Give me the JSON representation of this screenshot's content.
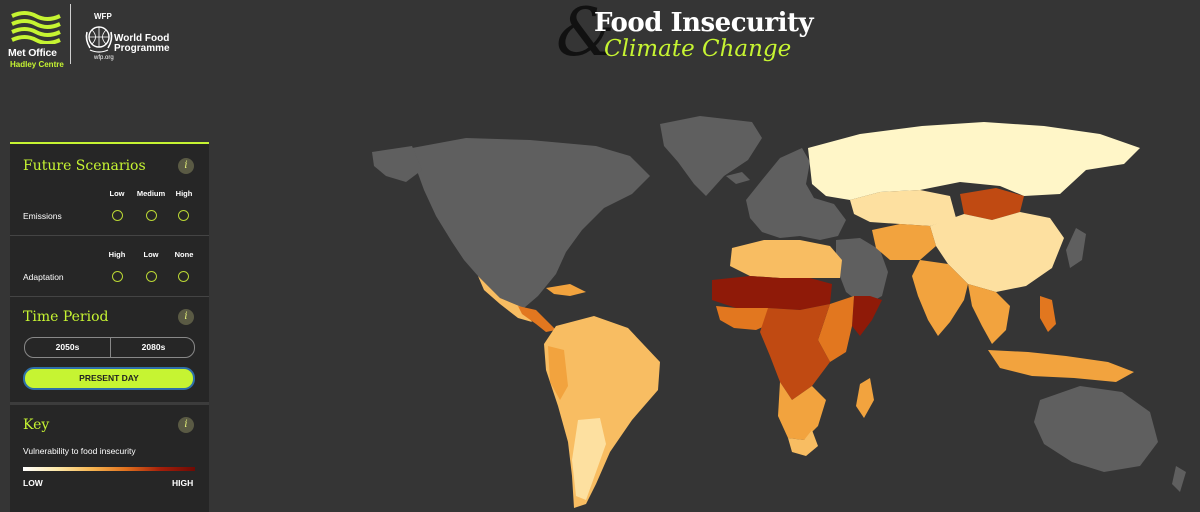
{
  "header": {
    "met_office_name": "Met Office",
    "met_office_sub": "Hadley Centre",
    "wfp_abbrev": "WFP",
    "wfp_name_line1": "World Food",
    "wfp_name_line2": "Programme",
    "wfp_url": "wfp.org"
  },
  "title": {
    "ampersand": "&",
    "line1": "Food Insecurity",
    "line2": "Climate Change"
  },
  "panel": {
    "scenarios": {
      "title": "Future Scenarios",
      "info": "i",
      "emissions": {
        "label": "Emissions",
        "options": [
          "Low",
          "Medium",
          "High"
        ]
      },
      "adaptation": {
        "label": "Adaptation",
        "options": [
          "High",
          "Low",
          "None"
        ]
      }
    },
    "time_period": {
      "title": "Time Period",
      "info": "i",
      "options": [
        "2050s",
        "2080s"
      ],
      "present": "PRESENT DAY",
      "selected": "PRESENT DAY"
    },
    "key": {
      "title": "Key",
      "info": "i",
      "subtitle": "Vulnerability to food insecurity",
      "low": "LOW",
      "high": "HIGH"
    }
  },
  "colors": {
    "accent": "#c6f432",
    "background": "#353535",
    "panel": "#262626",
    "no_data": "#5f5f5f",
    "very_low": "#fff6c8",
    "low": "#fde0a0",
    "medium_low": "#f8bd62",
    "medium": "#f2a33e",
    "medium_high": "#e2771f",
    "high": "#c04a12",
    "very_high": "#8f1a08"
  },
  "map_data": {
    "legend": "Vulnerability to food insecurity",
    "regions": [
      {
        "region": "North America",
        "level": "no data"
      },
      {
        "region": "Greenland",
        "level": "no data"
      },
      {
        "region": "Europe",
        "level": "no data"
      },
      {
        "region": "Russia",
        "level": "very low"
      },
      {
        "region": "Mongolia",
        "level": "high"
      },
      {
        "region": "China",
        "level": "low"
      },
      {
        "region": "India",
        "level": "medium"
      },
      {
        "region": "Southeast Asia",
        "level": "medium"
      },
      {
        "region": "Central America",
        "level": "medium"
      },
      {
        "region": "South America",
        "level": "medium-low"
      },
      {
        "region": "Sahel",
        "level": "very high"
      },
      {
        "region": "Central Africa",
        "level": "high"
      },
      {
        "region": "Somalia",
        "level": "very high"
      },
      {
        "region": "Southern Africa",
        "level": "medium"
      },
      {
        "region": "Madagascar",
        "level": "medium"
      },
      {
        "region": "Middle East",
        "level": "no data"
      },
      {
        "region": "Australia",
        "level": "no data"
      }
    ]
  }
}
